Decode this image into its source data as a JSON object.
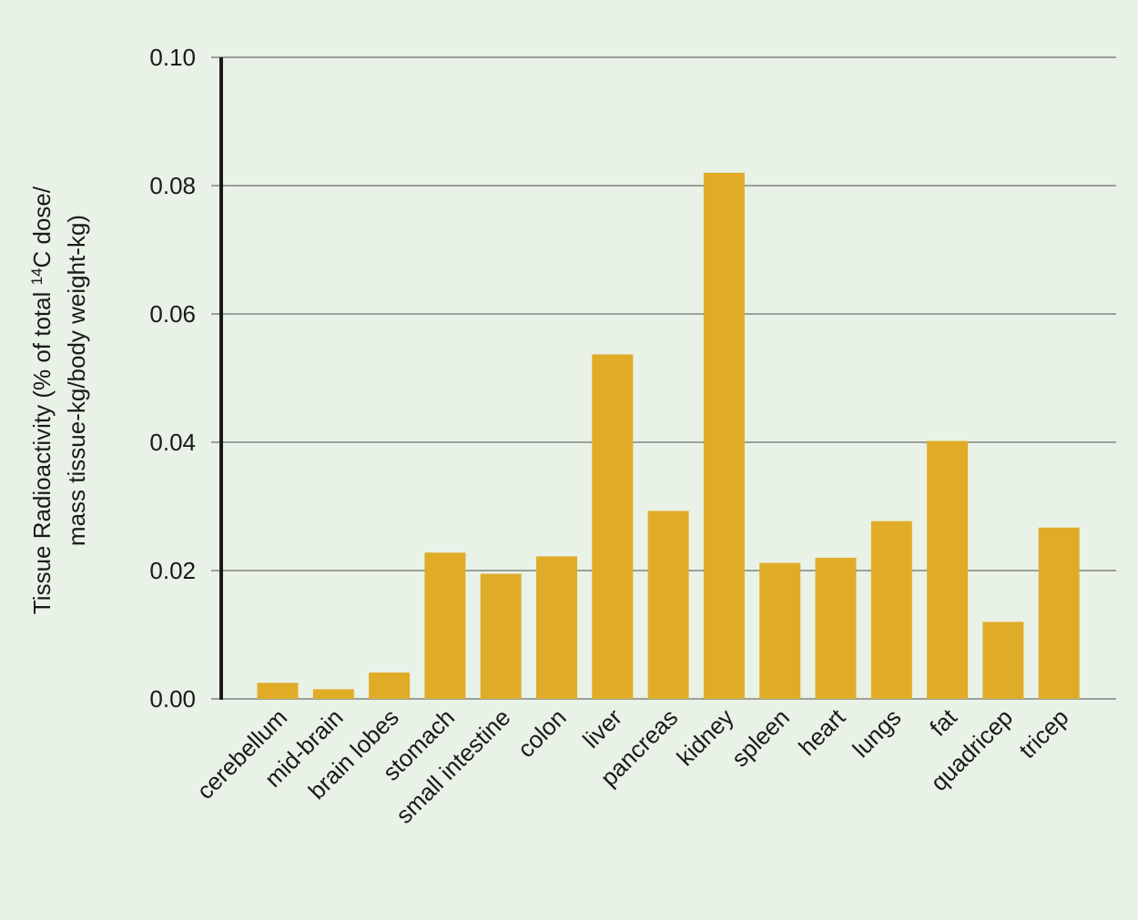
{
  "chart_data": {
    "type": "bar",
    "title": "",
    "xlabel": "",
    "ylabel_line1": "Tissue Radioactivity (% of total ",
    "ylabel_sup": "14",
    "ylabel_line1_end": "C dose/",
    "ylabel_line2": "mass tissue-kg/body weight-kg)",
    "ylim": [
      0,
      0.1
    ],
    "yticks": [
      "0.00",
      "0.02",
      "0.04",
      "0.06",
      "0.08",
      "0.10"
    ],
    "grid": true,
    "categories": [
      "cerebellum",
      "mid-brain",
      "brain lobes",
      "stomach",
      "small intestine",
      "colon",
      "liver",
      "pancreas",
      "kidney",
      "spleen",
      "heart",
      "lungs",
      "fat",
      "quadricep",
      "tricep"
    ],
    "values": [
      0.0025,
      0.0015,
      0.0041,
      0.0228,
      0.0195,
      0.0222,
      0.0537,
      0.0293,
      0.082,
      0.0212,
      0.022,
      0.0277,
      0.0402,
      0.012,
      0.0267
    ],
    "colors": {
      "bar": "#e0ac28",
      "background": "#e9f2e6",
      "grid": "#9aa09a",
      "axis": "#1a1a1a"
    }
  }
}
